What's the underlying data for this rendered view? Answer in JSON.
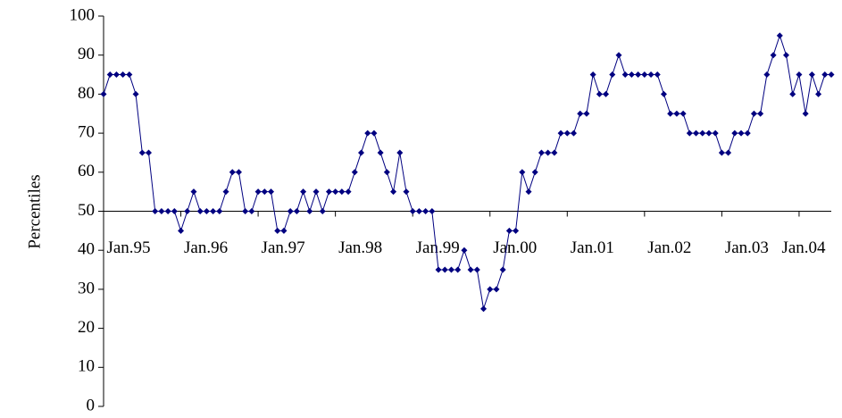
{
  "chart_data": {
    "type": "line",
    "y_label": "Percentiles",
    "categories": [
      "Jan.95",
      null,
      null,
      null,
      null,
      null,
      null,
      null,
      null,
      null,
      null,
      null,
      "Jan.96",
      null,
      null,
      null,
      null,
      null,
      null,
      null,
      null,
      null,
      null,
      null,
      "Jan.97",
      null,
      null,
      null,
      null,
      null,
      null,
      null,
      null,
      null,
      null,
      null,
      "Jan.98",
      null,
      null,
      null,
      null,
      null,
      null,
      null,
      null,
      null,
      null,
      null,
      "Jan.99",
      null,
      null,
      null,
      null,
      null,
      null,
      null,
      null,
      null,
      null,
      null,
      "Jan.00",
      null,
      null,
      null,
      null,
      null,
      null,
      null,
      null,
      null,
      null,
      null,
      "Jan.01",
      null,
      null,
      null,
      null,
      null,
      null,
      null,
      null,
      null,
      null,
      null,
      "Jan.02",
      null,
      null,
      null,
      null,
      null,
      null,
      null,
      null,
      null,
      null,
      null,
      "Jan.03",
      null,
      null,
      null,
      null,
      null,
      null,
      null,
      null,
      null,
      null,
      null,
      "Jan.04",
      null,
      null,
      null,
      null,
      null
    ],
    "values": [
      80,
      85,
      85,
      85,
      85,
      80,
      65,
      65,
      50,
      50,
      50,
      50,
      45,
      50,
      55,
      50,
      50,
      50,
      50,
      55,
      60,
      60,
      50,
      50,
      55,
      55,
      55,
      45,
      45,
      50,
      50,
      55,
      50,
      55,
      50,
      55,
      55,
      55,
      55,
      60,
      65,
      70,
      70,
      65,
      60,
      55,
      65,
      55,
      50,
      50,
      50,
      50,
      35,
      35,
      35,
      35,
      40,
      35,
      35,
      25,
      30,
      30,
      35,
      45,
      45,
      60,
      55,
      60,
      65,
      65,
      65,
      70,
      70,
      70,
      75,
      75,
      85,
      80,
      80,
      85,
      90,
      85,
      85,
      85,
      85,
      85,
      85,
      80,
      75,
      75,
      75,
      70,
      70,
      70,
      70,
      70,
      65,
      65,
      70,
      70,
      70,
      75,
      75,
      85,
      90,
      95,
      90,
      80,
      85,
      75,
      85,
      80,
      85,
      85
    ],
    "color": "#000080",
    "ylim": [
      0,
      100
    ],
    "yticks": [
      0,
      10,
      20,
      30,
      40,
      50,
      60,
      70,
      80,
      90,
      100
    ],
    "x_axis_crossing": 50
  }
}
